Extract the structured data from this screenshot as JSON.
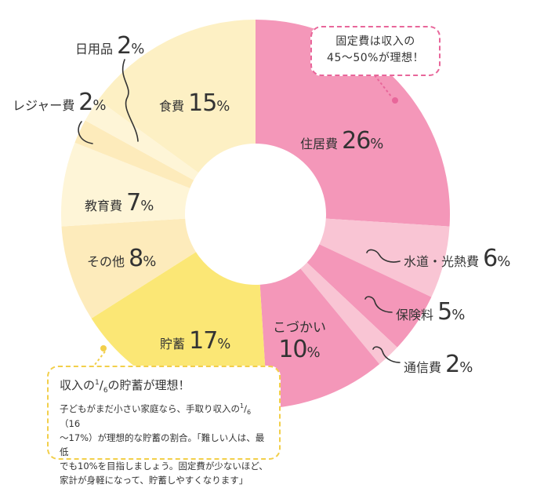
{
  "chart_data": {
    "type": "pie",
    "donut": true,
    "slices": [
      {
        "label": "住居費",
        "value": 26,
        "color": "#f497b9"
      },
      {
        "label": "水道・光熱費",
        "value": 6,
        "color": "#f9c5d4"
      },
      {
        "label": "保険料",
        "value": 5,
        "color": "#f497b9"
      },
      {
        "label": "通信費",
        "value": 2,
        "color": "#f9c5d4"
      },
      {
        "label": "こづかい",
        "value": 10,
        "color": "#f497b9"
      },
      {
        "label": "貯蓄",
        "value": 17,
        "color": "#fbe775"
      },
      {
        "label": "その他",
        "value": 8,
        "color": "#fdebbb"
      },
      {
        "label": "教育費",
        "value": 7,
        "color": "#fef5d7"
      },
      {
        "label": "レジャー費",
        "value": 2,
        "color": "#fdebbb"
      },
      {
        "label": "日用品",
        "value": 2,
        "color": "#fef5d7"
      },
      {
        "label": "食費",
        "value": 15,
        "color": "#fdf0c4"
      }
    ],
    "percent_sign": "%"
  },
  "callouts": {
    "fixed_cost": {
      "line1": "固定費は収入の",
      "line2": "45〜50%が理想！"
    },
    "savings": {
      "head_a": "収入の",
      "head_num": "1",
      "head_den": "6",
      "head_b": "の貯蓄が理想！",
      "line1a": "子どもがまだ小さい家庭なら、手取り収入の",
      "frac_num": "1",
      "frac_den": "6",
      "line1b": "（16",
      "line2": "〜17%）が理想的な貯蓄の割合。「難しい人は、最低",
      "line3": "でも10%を目指しましょう。固定費が少ないほど、",
      "line4": "家計が身軽になって、貯蓄しやすくなります」"
    }
  },
  "colors": {
    "pink_accent": "#e8669a",
    "yellow_accent": "#f2cf4a",
    "text": "#333333"
  }
}
